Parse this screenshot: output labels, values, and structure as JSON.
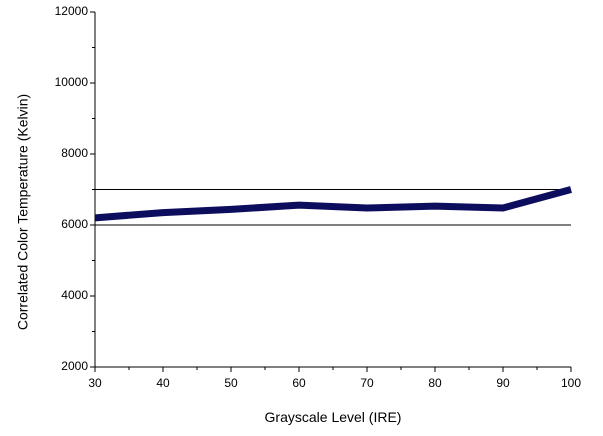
{
  "chart_data": {
    "type": "line",
    "title": "",
    "xlabel": "Grayscale Level (IRE)",
    "ylabel": "Correlated Color Temperature (Kelvin)",
    "xlim": [
      30,
      100
    ],
    "ylim": [
      2000,
      12000
    ],
    "x_ticks": [
      30,
      40,
      50,
      60,
      70,
      80,
      90,
      100
    ],
    "y_ticks": [
      2000,
      4000,
      6000,
      8000,
      10000,
      12000
    ],
    "x_minor_step": 5,
    "y_minor_step": 1000,
    "grid": false,
    "reference_lines": [
      6000,
      7000
    ],
    "series": [
      {
        "color": "#0d0d5e",
        "x": [
          30,
          40,
          50,
          60,
          70,
          80,
          90,
          100
        ],
        "y": [
          6200,
          6350,
          6440,
          6560,
          6480,
          6530,
          6480,
          7000
        ]
      }
    ]
  }
}
